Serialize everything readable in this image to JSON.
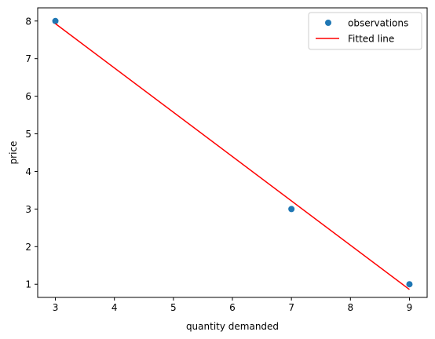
{
  "chart_data": {
    "type": "scatter",
    "title": "",
    "xlabel": "quantity demanded",
    "ylabel": "price",
    "xlim": [
      2.7,
      9.3
    ],
    "ylim": [
      0.65,
      8.35
    ],
    "xticks": [
      3,
      4,
      5,
      6,
      7,
      8,
      9
    ],
    "yticks": [
      1,
      2,
      3,
      4,
      5,
      6,
      7,
      8
    ],
    "grid": false,
    "legend_position": "top-right",
    "series": [
      {
        "name": "observations",
        "kind": "scatter",
        "color": "#1f77b4",
        "x": [
          3,
          7,
          9
        ],
        "y": [
          8,
          3,
          1
        ]
      },
      {
        "name": "Fitted line",
        "kind": "line",
        "color": "#ff0000",
        "x": [
          3,
          9
        ],
        "y": [
          7.93,
          0.86
        ]
      }
    ]
  }
}
